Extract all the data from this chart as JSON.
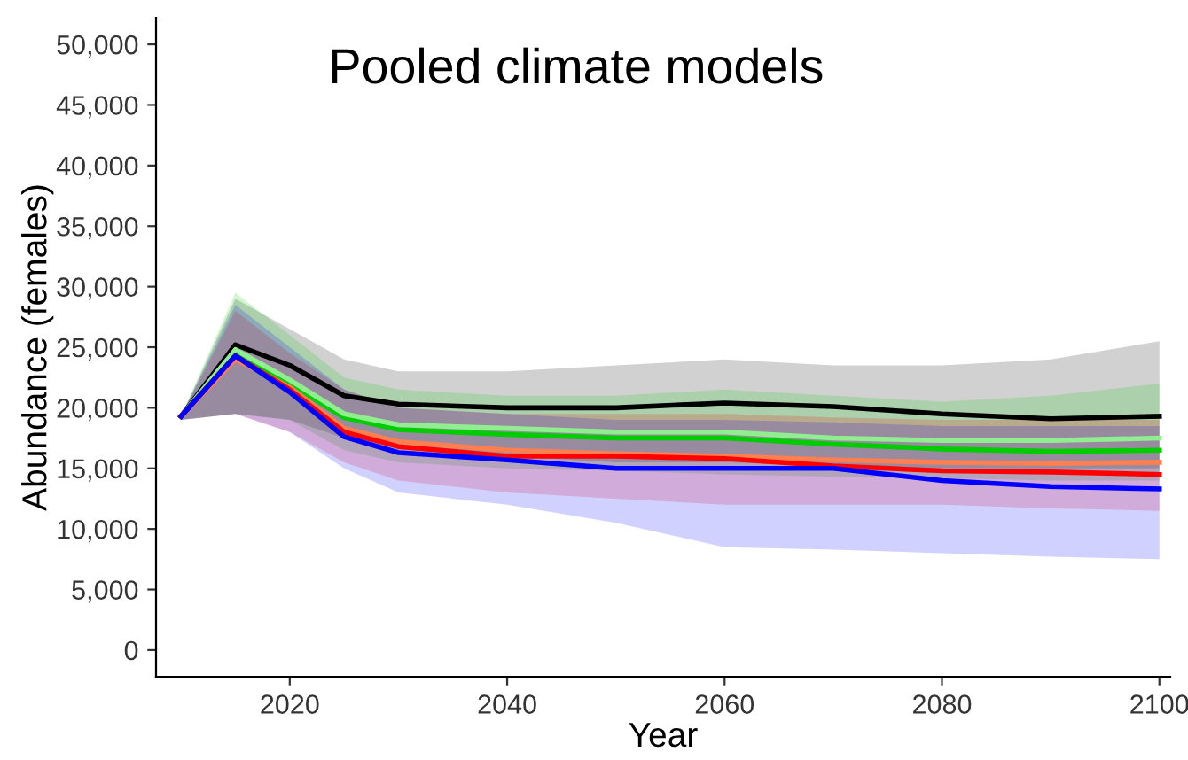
{
  "chart_data": {
    "type": "line",
    "title": "Pooled climate models",
    "xlabel": "Year",
    "ylabel": "Abundance (females)",
    "x": [
      2010,
      2015,
      2020,
      2025,
      2030,
      2040,
      2050,
      2060,
      2070,
      2080,
      2090,
      2100
    ],
    "xlim": [
      2007.7,
      2101
    ],
    "xticks": [
      2020,
      2040,
      2060,
      2080,
      2100
    ],
    "ylim": [
      -2200,
      52200
    ],
    "yticks": [
      {
        "value": 0,
        "label": "0"
      },
      {
        "value": 5000,
        "label": "5,000"
      },
      {
        "value": 10000,
        "label": "10,000"
      },
      {
        "value": 15000,
        "label": "15,000"
      },
      {
        "value": 20000,
        "label": "20,000"
      },
      {
        "value": 25000,
        "label": "25,000"
      },
      {
        "value": 30000,
        "label": "30,000"
      },
      {
        "value": 35000,
        "label": "35,000"
      },
      {
        "value": 40000,
        "label": "40,000"
      },
      {
        "value": 45000,
        "label": "45,000"
      },
      {
        "value": 50000,
        "label": "50,000"
      }
    ],
    "grid": false,
    "marker": "none",
    "line_style": "solid",
    "series": [
      {
        "color": "#000000",
        "values": [
          19300,
          25200,
          23500,
          21000,
          20300,
          20000,
          20000,
          20400,
          20100,
          19500,
          19100,
          19300
        ],
        "lower": [
          19000,
          19500,
          19000,
          17500,
          17000,
          16000,
          15500,
          15500,
          15200,
          15000,
          15000,
          15000
        ],
        "upper": [
          19300,
          29000,
          26500,
          24000,
          23000,
          23000,
          23500,
          24000,
          23500,
          23500,
          24000,
          25500
        ]
      },
      {
        "color": "#00cc00",
        "values": [
          19300,
          24500,
          22000,
          19200,
          18200,
          17800,
          17500,
          17500,
          17000,
          16600,
          16400,
          16500
        ],
        "lower": [
          19000,
          19500,
          19000,
          16500,
          15500,
          15000,
          14800,
          14500,
          14300,
          14200,
          14000,
          14000
        ],
        "upper": [
          19300,
          29500,
          26000,
          22500,
          21500,
          21000,
          21000,
          21500,
          21000,
          20500,
          21000,
          22000
        ]
      },
      {
        "color": "#90ee90",
        "values": [
          19300,
          24800,
          22300,
          19500,
          18600,
          18300,
          18000,
          18000,
          17500,
          17300,
          17300,
          17500
        ]
      },
      {
        "color": "#ff7f50",
        "values": [
          19300,
          24000,
          21700,
          18300,
          17200,
          16500,
          16200,
          16000,
          15700,
          15500,
          15400,
          15500
        ]
      },
      {
        "color": "#ff0000",
        "values": [
          19300,
          24300,
          21500,
          18000,
          16800,
          16000,
          16000,
          15800,
          15200,
          14800,
          14700,
          14500
        ],
        "lower": [
          19000,
          19500,
          18000,
          15500,
          14000,
          13000,
          12500,
          12000,
          12000,
          12000,
          11700,
          11500
        ],
        "upper": [
          19300,
          28000,
          24500,
          21500,
          20000,
          19500,
          19500,
          19500,
          19200,
          19000,
          19000,
          19000
        ]
      },
      {
        "color": "#0000ff",
        "values": [
          19300,
          24300,
          21300,
          17600,
          16300,
          15700,
          15000,
          15000,
          15000,
          14000,
          13500,
          13300
        ],
        "lower": [
          19000,
          19500,
          18000,
          15000,
          13000,
          12000,
          10500,
          8500,
          8300,
          8000,
          7700,
          7500
        ],
        "upper": [
          19300,
          28500,
          25000,
          21500,
          20000,
          19500,
          19000,
          19000,
          18800,
          18500,
          18500,
          18500
        ]
      }
    ]
  }
}
